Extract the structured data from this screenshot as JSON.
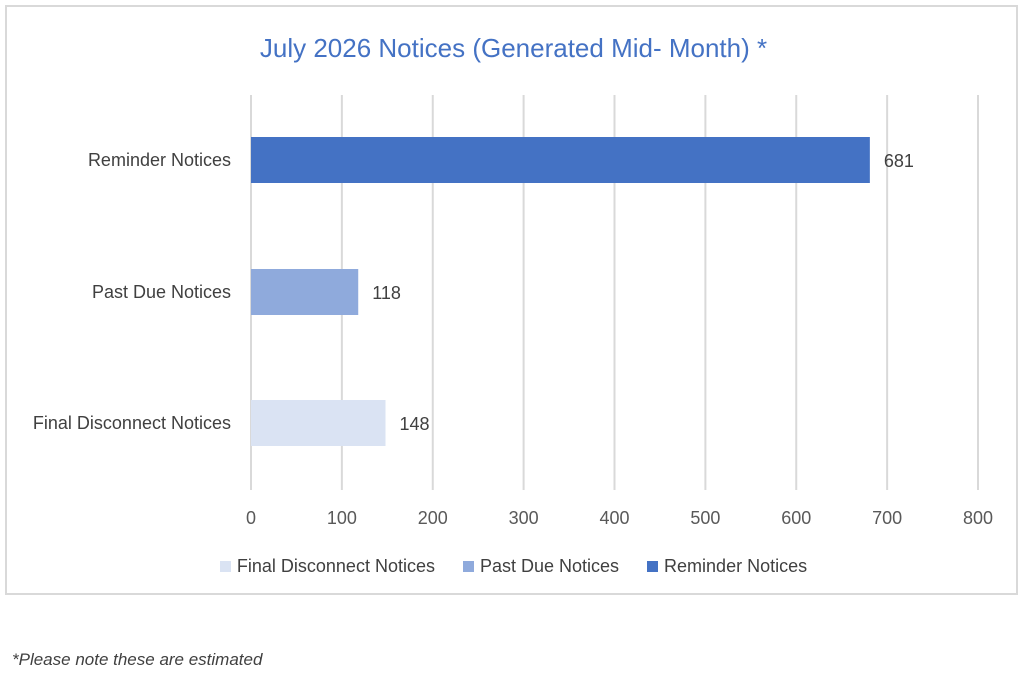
{
  "chart_data": {
    "type": "bar",
    "orientation": "horizontal",
    "title": "July 2026 Notices (Generated Mid- Month) *",
    "categories": [
      "Reminder Notices",
      "Past Due Notices",
      "Final Disconnect Notices"
    ],
    "values": [
      681,
      118,
      148
    ],
    "data_labels": [
      "681",
      "118",
      "148"
    ],
    "colors": [
      "#4472c4",
      "#8faadc",
      "#dae3f3"
    ],
    "xlim": [
      0,
      800
    ],
    "xticks": [
      "0",
      "100",
      "200",
      "300",
      "400",
      "500",
      "600",
      "700",
      "800"
    ],
    "xlabel": "",
    "ylabel": "",
    "grid": "vertical",
    "legend": {
      "position": "bottom",
      "entries": [
        {
          "name": "Final Disconnect Notices",
          "color": "#dae3f3"
        },
        {
          "name": "Past Due Notices",
          "color": "#8faadc"
        },
        {
          "name": "Reminder Notices",
          "color": "#4472c4"
        }
      ]
    }
  },
  "footnote": "*Please note these are estimated"
}
